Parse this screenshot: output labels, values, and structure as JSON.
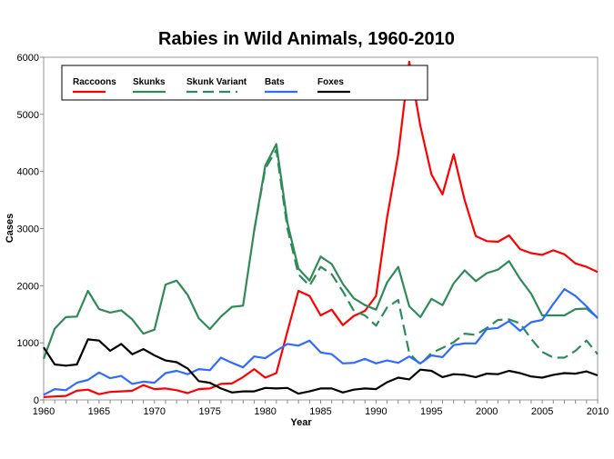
{
  "chart_data": {
    "type": "line",
    "title": "Rabies in Wild Animals, 1960-2010",
    "xlabel": "Year",
    "ylabel": "Cases",
    "xlim": [
      1960,
      2010
    ],
    "ylim": [
      0,
      6000
    ],
    "xticks": [
      1960,
      1965,
      1970,
      1975,
      1980,
      1985,
      1990,
      1995,
      2000,
      2005,
      2010
    ],
    "yticks": [
      0,
      1000,
      2000,
      3000,
      4000,
      5000,
      6000
    ],
    "grid": false,
    "legend": "top-left",
    "x": [
      1960,
      1961,
      1962,
      1963,
      1964,
      1965,
      1966,
      1967,
      1968,
      1969,
      1970,
      1971,
      1972,
      1973,
      1974,
      1975,
      1976,
      1977,
      1978,
      1979,
      1980,
      1981,
      1982,
      1983,
      1984,
      1985,
      1986,
      1987,
      1988,
      1989,
      1990,
      1991,
      1992,
      1993,
      1994,
      1995,
      1996,
      1997,
      1998,
      1999,
      2000,
      2001,
      2002,
      2003,
      2004,
      2005,
      2006,
      2007,
      2008,
      2009,
      2010
    ],
    "series": [
      {
        "name": "Raccoons",
        "color": "#ff0000",
        "dash": false,
        "values": [
          50,
          60,
          70,
          160,
          180,
          100,
          140,
          150,
          160,
          260,
          190,
          200,
          170,
          120,
          190,
          200,
          280,
          290,
          400,
          540,
          390,
          470,
          1200,
          1910,
          1820,
          1480,
          1580,
          1310,
          1470,
          1560,
          1820,
          3200,
          4300,
          5920,
          4800,
          3950,
          3600,
          4300,
          3500,
          2870,
          2780,
          2770,
          2880,
          2640,
          2570,
          2540,
          2620,
          2550,
          2390,
          2330,
          2240
        ]
      },
      {
        "name": "Skunks",
        "color": "#2e8b57",
        "dash": false,
        "values": [
          720,
          1250,
          1450,
          1460,
          1910,
          1590,
          1530,
          1570,
          1410,
          1160,
          1230,
          2020,
          2090,
          1840,
          1430,
          1240,
          1460,
          1630,
          1650,
          2960,
          4100,
          4480,
          3100,
          2300,
          2090,
          2510,
          2380,
          2030,
          1780,
          1660,
          1580,
          2060,
          2330,
          1640,
          1450,
          1770,
          1660,
          2040,
          2270,
          2080,
          2220,
          2280,
          2430,
          2120,
          1860,
          1480,
          1480,
          1480,
          1590,
          1600,
          1440
        ]
      },
      {
        "name": "Skunk Variant",
        "color": "#2e8b57",
        "dash": true,
        "values": [
          null,
          null,
          null,
          null,
          null,
          null,
          null,
          null,
          null,
          null,
          null,
          null,
          null,
          null,
          null,
          null,
          null,
          null,
          null,
          2960,
          4050,
          4380,
          3000,
          2200,
          2000,
          2330,
          2200,
          1900,
          1560,
          1480,
          1300,
          1620,
          1750,
          820,
          620,
          820,
          910,
          1010,
          1160,
          1140,
          1260,
          1400,
          1410,
          1340,
          1070,
          840,
          740,
          740,
          860,
          1040,
          800
        ]
      },
      {
        "name": "Bats",
        "color": "#2f6bff",
        "dash": false,
        "values": [
          90,
          190,
          170,
          300,
          350,
          480,
          380,
          420,
          280,
          320,
          300,
          470,
          510,
          450,
          540,
          520,
          740,
          650,
          570,
          760,
          730,
          860,
          980,
          950,
          1040,
          830,
          800,
          640,
          650,
          720,
          640,
          690,
          650,
          760,
          640,
          780,
          750,
          960,
          990,
          990,
          1240,
          1260,
          1380,
          1210,
          1360,
          1400,
          1680,
          1940,
          1820,
          1640,
          1430
        ]
      },
      {
        "name": "Foxes",
        "color": "#000000",
        "dash": false,
        "values": [
          920,
          620,
          600,
          620,
          1060,
          1040,
          860,
          980,
          800,
          890,
          780,
          690,
          660,
          550,
          330,
          300,
          200,
          130,
          150,
          150,
          210,
          200,
          210,
          110,
          150,
          200,
          200,
          130,
          180,
          200,
          190,
          310,
          390,
          360,
          530,
          510,
          400,
          450,
          440,
          400,
          460,
          450,
          510,
          470,
          410,
          390,
          440,
          470,
          460,
          500,
          430
        ]
      }
    ]
  }
}
